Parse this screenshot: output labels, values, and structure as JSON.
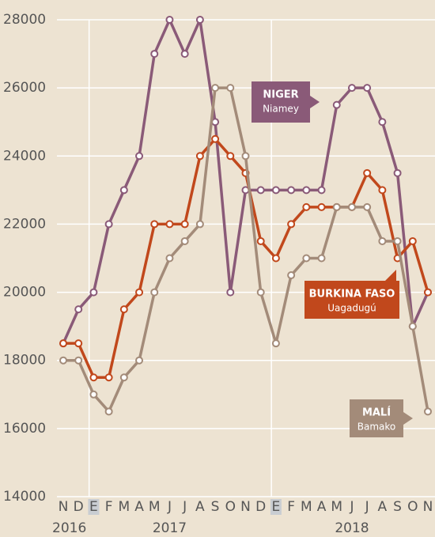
{
  "chart_data": {
    "type": "line",
    "categories": [
      "N",
      "D",
      "E",
      "F",
      "M",
      "A",
      "M",
      "J",
      "J",
      "A",
      "S",
      "O",
      "N",
      "D",
      "E",
      "F",
      "M",
      "A",
      "M",
      "J",
      "J",
      "A",
      "S",
      "O",
      "N"
    ],
    "years": [
      "2016",
      "2017",
      "2018"
    ],
    "ylim": [
      14000,
      28000
    ],
    "yticks": [
      14000,
      16000,
      18000,
      20000,
      22000,
      24000,
      26000,
      28000
    ],
    "grid": true,
    "series": [
      {
        "name": "NIGER",
        "city": "Niamey",
        "color": "#8a5a78",
        "values": [
          18500,
          19500,
          20000,
          22000,
          23000,
          24000,
          27000,
          28000,
          27000,
          28000,
          25000,
          20000,
          23000,
          23000,
          23000,
          23000,
          23000,
          23000,
          25500,
          26000,
          26000,
          25000,
          23500,
          19000,
          20000
        ]
      },
      {
        "name": "BURKINA FASO",
        "city": "Uagadugú",
        "color": "#c1481c",
        "values": [
          18500,
          18500,
          17500,
          17500,
          19500,
          20000,
          22000,
          22000,
          22000,
          24000,
          24500,
          24000,
          23500,
          21500,
          21000,
          22000,
          22500,
          22500,
          22500,
          22500,
          23500,
          23000,
          21000,
          21500,
          20000
        ]
      },
      {
        "name": "MALÍ",
        "city": "Bamako",
        "color": "#a38b79",
        "values": [
          18000,
          18000,
          17000,
          16500,
          17500,
          18000,
          20000,
          21000,
          21500,
          22000,
          26000,
          26000,
          24000,
          20000,
          18500,
          20500,
          21000,
          21000,
          22500,
          22500,
          22500,
          21500,
          21500,
          19000,
          16500
        ]
      }
    ]
  }
}
